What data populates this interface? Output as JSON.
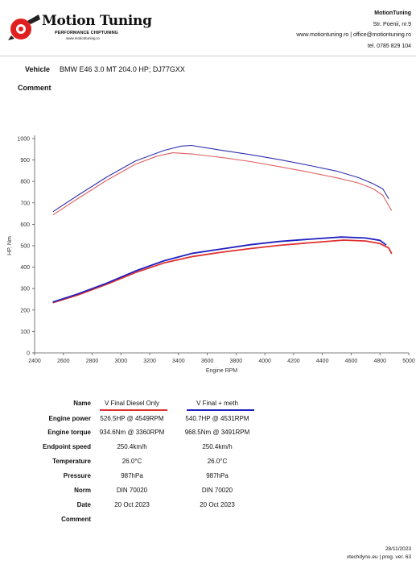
{
  "brand": {
    "title": "Motion Tuning",
    "subtitle": "PERFORMANCE CHIPTUNING",
    "url": "www.motiontuning.ro"
  },
  "company": {
    "name": "MotionTuning",
    "street": "Str. Poenii, nr.9",
    "contact": "www.motiontuning.ro | office@motiontuning.ro",
    "phone": "tel. 0785 829 104"
  },
  "vehicle": {
    "label": "Vehicle",
    "value": "BMW E46 3.0 MT 204.0 HP; DJ77GXX"
  },
  "comment_label": "Comment",
  "colors": {
    "diesel": "#e06060",
    "meth": "#3030b0",
    "diesel_line": "#e03030",
    "meth_line": "#2020c0"
  },
  "chart_data": {
    "type": "line",
    "xlabel": "Engine RPM",
    "ylabel": "HP, Nm",
    "xlim": [
      2400,
      5000
    ],
    "ylim": [
      0,
      1000
    ],
    "x_ticks": [
      2400,
      2600,
      2800,
      3000,
      3200,
      3400,
      3600,
      3800,
      4000,
      4200,
      4400,
      4600,
      4800,
      5000
    ],
    "y_ticks": [
      0,
      100,
      200,
      300,
      400,
      500,
      600,
      700,
      800,
      900,
      1000
    ],
    "grid": false,
    "series": [
      {
        "name": "V Final Diesel Only",
        "metric": "torque",
        "x": [
          2530,
          2700,
          2900,
          3100,
          3250,
          3360,
          3500,
          3700,
          3900,
          4100,
          4300,
          4500,
          4650,
          4750,
          4820,
          4880
        ],
        "y": [
          645,
          720,
          805,
          880,
          918,
          934,
          928,
          912,
          893,
          869,
          844,
          817,
          793,
          767,
          735,
          665
        ]
      },
      {
        "name": "V Final + meth",
        "metric": "torque",
        "x": [
          2530,
          2700,
          2900,
          3100,
          3300,
          3420,
          3491,
          3700,
          3900,
          4100,
          4300,
          4500,
          4650,
          4750,
          4820,
          4860
        ],
        "y": [
          660,
          735,
          820,
          895,
          945,
          965,
          968,
          945,
          925,
          902,
          876,
          848,
          818,
          790,
          765,
          720
        ]
      },
      {
        "name": "V Final Diesel Only",
        "metric": "power",
        "x": [
          2530,
          2700,
          2900,
          3100,
          3300,
          3500,
          3700,
          3900,
          4100,
          4300,
          4549,
          4700,
          4800,
          4860,
          4880
        ],
        "y": [
          235,
          270,
          320,
          375,
          420,
          450,
          470,
          487,
          502,
          513,
          526.5,
          522,
          510,
          490,
          465
        ]
      },
      {
        "name": "V Final + meth",
        "metric": "power",
        "x": [
          2530,
          2700,
          2900,
          3100,
          3300,
          3500,
          3700,
          3900,
          4100,
          4300,
          4531,
          4700,
          4800,
          4840
        ],
        "y": [
          238,
          275,
          325,
          382,
          430,
          465,
          485,
          505,
          520,
          530,
          540.7,
          536,
          525,
          505
        ]
      }
    ]
  },
  "table": {
    "name_label": "Name",
    "series_names": [
      "V Final Diesel Only",
      "V Final + meth"
    ],
    "rows": [
      {
        "label": "Engine power",
        "values": [
          "526.5HP @ 4549RPM",
          "540.7HP @ 4531RPM"
        ]
      },
      {
        "label": "Engine torque",
        "values": [
          "934.6Nm @ 3360RPM",
          "968.5Nm @ 3491RPM"
        ]
      },
      {
        "label": "Endpoint speed",
        "values": [
          "250.4km/h",
          "250.4km/h"
        ]
      },
      {
        "label": "Temperature",
        "values": [
          "26.0°C",
          "26.0°C"
        ]
      },
      {
        "label": "Pressure",
        "values": [
          "987hPa",
          "987hPa"
        ]
      },
      {
        "label": "Norm",
        "values": [
          "DIN 70020",
          "DIN 70020"
        ]
      },
      {
        "label": "Date",
        "values": [
          "20 Oct 2023",
          "20 Oct 2023"
        ]
      }
    ],
    "comment_label": "Comment"
  },
  "footer": {
    "date": "28/11/2023",
    "program": "vtechdyno.eu | prog. ver. 63"
  }
}
